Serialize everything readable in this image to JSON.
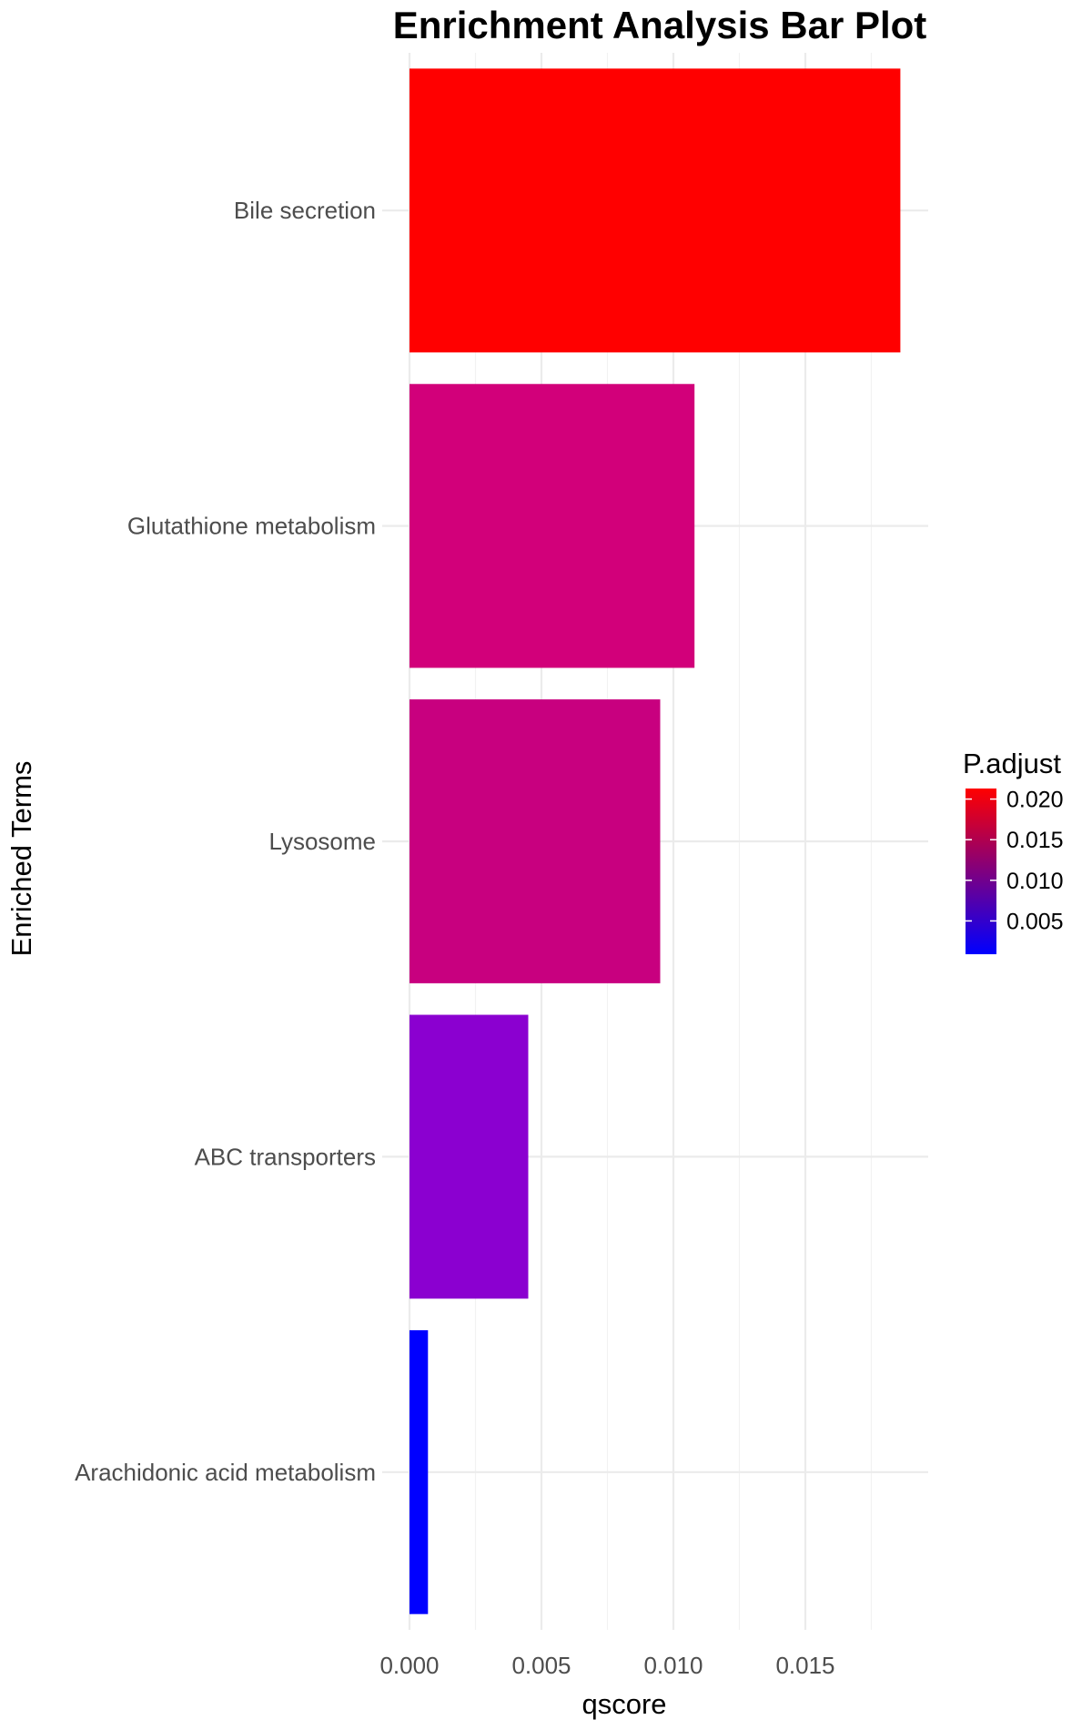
{
  "chart_data": {
    "type": "bar",
    "orientation": "horizontal",
    "title": "Enrichment Analysis Bar Plot",
    "xlabel": "qscore",
    "ylabel": "Enriched Terms",
    "xlim": [
      0,
      0.0195
    ],
    "x_ticks": [
      0.0,
      0.005,
      0.01,
      0.015
    ],
    "x_tick_labels": [
      "0.000",
      "0.005",
      "0.010",
      "0.015"
    ],
    "categories": [
      "Bile secretion",
      "Glutathione metabolism",
      "Lysosome",
      "ABC transporters",
      "Arachidonic acid metabolism"
    ],
    "values": [
      0.0186,
      0.0108,
      0.0095,
      0.0045,
      0.0007
    ],
    "color_values": [
      0.0213,
      0.0123,
      0.0111,
      0.0057,
      0.0009
    ],
    "bar_colors": [
      "#ff0000",
      "#d2007a",
      "#c8007f",
      "#8b00d0",
      "#0000ff"
    ],
    "grid": true,
    "legend": {
      "title": "P.adjust",
      "placement": "right",
      "type": "colorbar",
      "low_color": "#0000ff",
      "high_color": "#ff0000",
      "range": [
        0.0009,
        0.0213
      ],
      "ticks": [
        0.02,
        0.015,
        0.01,
        0.005
      ],
      "tick_labels": [
        "0.020",
        "0.015",
        "0.010",
        "0.005"
      ]
    }
  }
}
